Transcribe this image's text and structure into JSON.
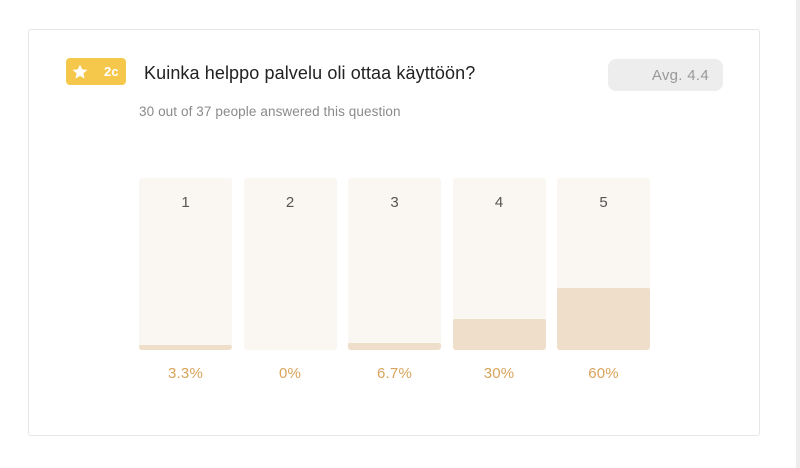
{
  "question": {
    "badge_label": "2c",
    "badge_icon": "star-icon",
    "accent_color": "#f5c84c",
    "title": "Kuinka helppo palvelu oli ottaa käyttöön?",
    "average_label": "Avg. 4.4",
    "answered_text": "30 out of 37 people answered this question"
  },
  "chart_data": {
    "type": "bar",
    "categories": [
      "1",
      "2",
      "3",
      "4",
      "5"
    ],
    "values": [
      3.3,
      0,
      6.7,
      30,
      60
    ],
    "value_labels": [
      "3.3%",
      "0%",
      "6.7%",
      "30%",
      "60%"
    ],
    "ylim": [
      0,
      100
    ],
    "bar_color": "#efdec9",
    "track_color": "#faf6f1",
    "label_color": "#d9a35a"
  }
}
